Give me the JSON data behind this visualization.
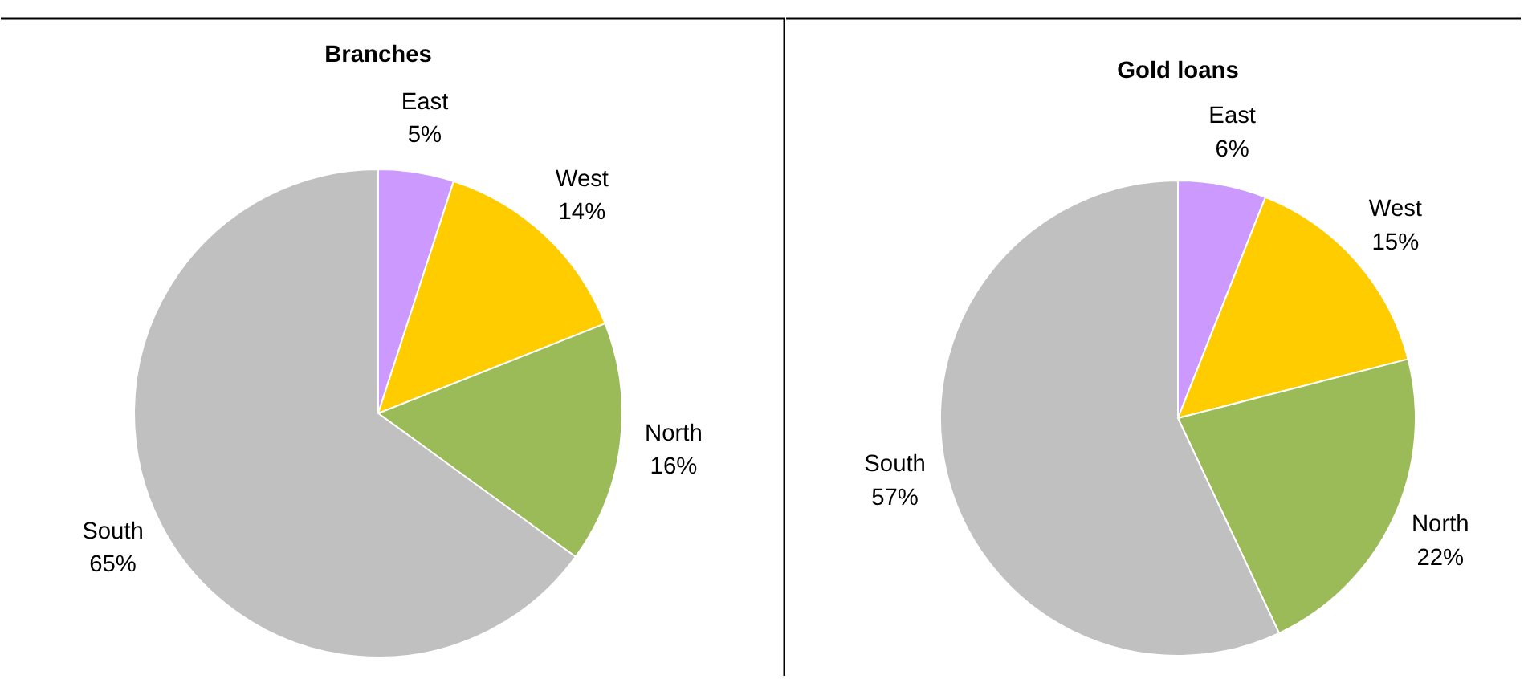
{
  "chart_data": [
    {
      "type": "pie",
      "title": "Branches",
      "categories": [
        "East",
        "West",
        "North",
        "South"
      ],
      "values": [
        5,
        14,
        16,
        65
      ],
      "value_labels": [
        "5%",
        "14%",
        "16%",
        "65%"
      ],
      "colors": [
        "#cc99ff",
        "#ffcc00",
        "#9bbb59",
        "#c0c0c0"
      ]
    },
    {
      "type": "pie",
      "title": "Gold loans",
      "categories": [
        "East",
        "West",
        "North",
        "South"
      ],
      "values": [
        6,
        15,
        22,
        57
      ],
      "value_labels": [
        "6%",
        "15%",
        "22%",
        "57%"
      ],
      "colors": [
        "#cc99ff",
        "#ffcc00",
        "#9bbb59",
        "#c0c0c0"
      ]
    }
  ]
}
